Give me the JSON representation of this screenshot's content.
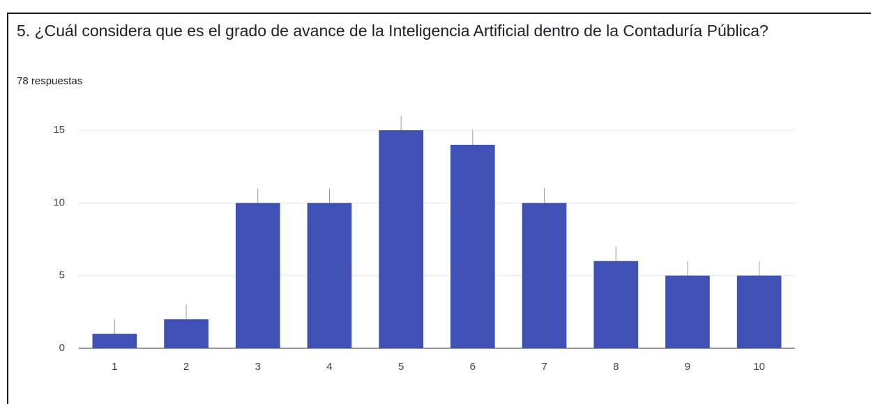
{
  "chart_data": {
    "type": "bar",
    "title": "5. ¿Cuál considera que es el grado de avance de la Inteligencia Artificial dentro de la Contaduría Pública?",
    "subtitle": "78 respuestas",
    "categories": [
      "1",
      "2",
      "3",
      "4",
      "5",
      "6",
      "7",
      "8",
      "9",
      "10"
    ],
    "values": [
      1,
      2,
      10,
      10,
      15,
      14,
      10,
      6,
      5,
      5
    ],
    "color": "#3f51b5",
    "ylim": [
      0,
      15
    ],
    "yticks": [
      0,
      5,
      10,
      15
    ],
    "grid": true
  }
}
